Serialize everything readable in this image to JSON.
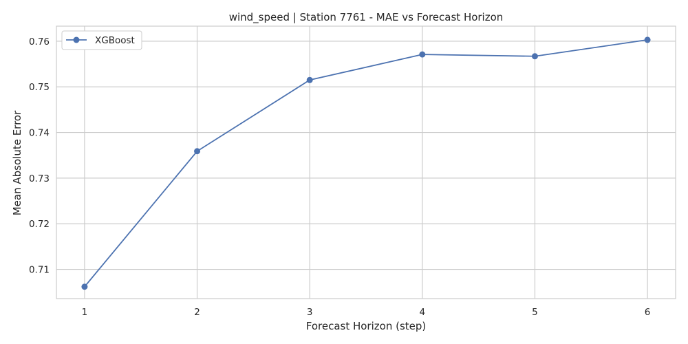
{
  "chart_data": {
    "type": "line",
    "title": "wind_speed | Station 7761 - MAE vs Forecast Horizon",
    "xlabel": "Forecast Horizon (step)",
    "ylabel": "Mean Absolute Error",
    "x": [
      1,
      2,
      3,
      4,
      5,
      6
    ],
    "xticks": [
      "1",
      "2",
      "3",
      "4",
      "5",
      "6"
    ],
    "yticks": [
      "0.71",
      "0.72",
      "0.73",
      "0.74",
      "0.75",
      "0.76"
    ],
    "xlim": [
      0.75,
      6.25
    ],
    "ylim": [
      0.7036,
      0.7633
    ],
    "grid": true,
    "legend_position": "upper-left",
    "series": [
      {
        "name": "XGBoost",
        "color": "#4c72b0",
        "marker": "circle",
        "values": [
          0.7062,
          0.7359,
          0.7515,
          0.7571,
          0.7567,
          0.7603
        ]
      }
    ]
  }
}
